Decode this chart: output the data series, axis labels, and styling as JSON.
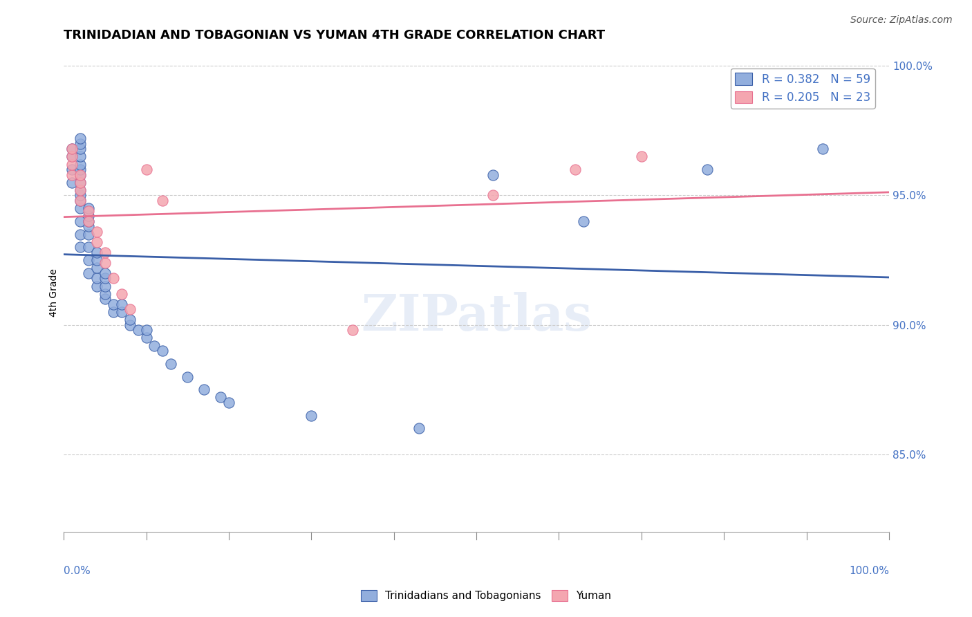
{
  "title": "TRINIDADIAN AND TOBAGONIAN VS YUMAN 4TH GRADE CORRELATION CHART",
  "source_text": "Source: ZipAtlas.com",
  "ylabel": "4th Grade",
  "xmin": 0.0,
  "xmax": 1.0,
  "ymin": 0.82,
  "ymax": 1.005,
  "yticks": [
    0.85,
    0.9,
    0.95,
    1.0
  ],
  "ytick_labels": [
    "85.0%",
    "90.0%",
    "95.0%",
    "100.0%"
  ],
  "blue_R": 0.382,
  "blue_N": 59,
  "pink_R": 0.205,
  "pink_N": 23,
  "blue_color": "#92AEDD",
  "pink_color": "#F4A6B0",
  "blue_line_color": "#3A5FA8",
  "pink_line_color": "#E87090",
  "axis_label_color": "#4472C4",
  "grid_color": "#CCCCCC",
  "blue_x": [
    0.01,
    0.01,
    0.01,
    0.01,
    0.02,
    0.02,
    0.02,
    0.02,
    0.02,
    0.02,
    0.02,
    0.02,
    0.02,
    0.02,
    0.02,
    0.02,
    0.02,
    0.02,
    0.02,
    0.03,
    0.03,
    0.03,
    0.03,
    0.03,
    0.03,
    0.03,
    0.03,
    0.04,
    0.04,
    0.04,
    0.04,
    0.04,
    0.05,
    0.05,
    0.05,
    0.05,
    0.05,
    0.06,
    0.06,
    0.07,
    0.07,
    0.08,
    0.08,
    0.09,
    0.1,
    0.1,
    0.11,
    0.12,
    0.13,
    0.15,
    0.17,
    0.19,
    0.2,
    0.3,
    0.43,
    0.52,
    0.63,
    0.78,
    0.92
  ],
  "blue_y": [
    0.955,
    0.96,
    0.965,
    0.968,
    0.93,
    0.935,
    0.94,
    0.945,
    0.948,
    0.95,
    0.952,
    0.955,
    0.958,
    0.96,
    0.962,
    0.965,
    0.968,
    0.97,
    0.972,
    0.92,
    0.925,
    0.93,
    0.935,
    0.938,
    0.94,
    0.942,
    0.945,
    0.915,
    0.918,
    0.922,
    0.925,
    0.928,
    0.91,
    0.912,
    0.915,
    0.918,
    0.92,
    0.905,
    0.908,
    0.905,
    0.908,
    0.9,
    0.902,
    0.898,
    0.895,
    0.898,
    0.892,
    0.89,
    0.885,
    0.88,
    0.875,
    0.872,
    0.87,
    0.865,
    0.86,
    0.958,
    0.94,
    0.96,
    0.968
  ],
  "pink_x": [
    0.01,
    0.01,
    0.01,
    0.01,
    0.02,
    0.02,
    0.02,
    0.02,
    0.03,
    0.03,
    0.04,
    0.04,
    0.05,
    0.05,
    0.06,
    0.07,
    0.08,
    0.1,
    0.12,
    0.35,
    0.52,
    0.62,
    0.7
  ],
  "pink_y": [
    0.958,
    0.962,
    0.965,
    0.968,
    0.948,
    0.952,
    0.955,
    0.958,
    0.94,
    0.944,
    0.932,
    0.936,
    0.924,
    0.928,
    0.918,
    0.912,
    0.906,
    0.96,
    0.948,
    0.898,
    0.95,
    0.96,
    0.965
  ],
  "watermark_text": "ZIPatlas",
  "legend_blue_label": "Trinidadians and Tobagonians",
  "legend_pink_label": "Yuman"
}
